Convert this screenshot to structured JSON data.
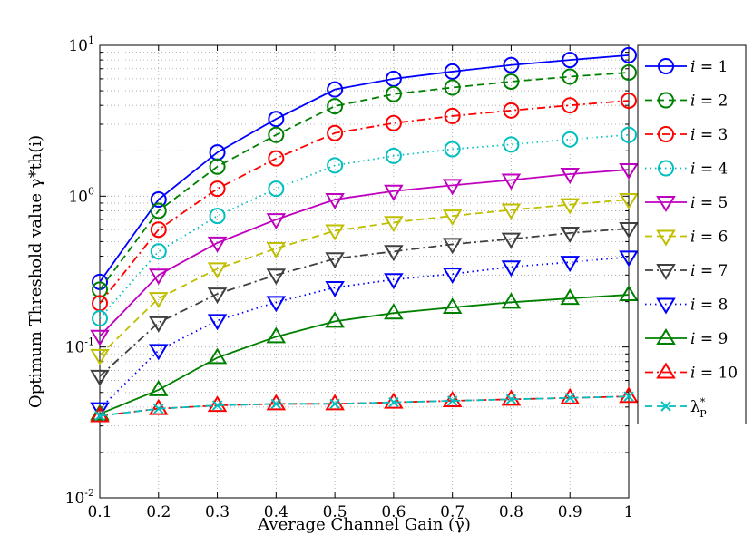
{
  "chart_data": {
    "type": "line",
    "title": "",
    "xlabel": "Average Channel Gain (γ̄)",
    "ylabel": "Optimum Threshold value γ*th(i)",
    "xlim": [
      0.1,
      1
    ],
    "ylim": [
      0.01,
      10
    ],
    "yscale": "log",
    "grid": true,
    "legend_position": "right-outside",
    "x": [
      0.1,
      0.2,
      0.3,
      0.4,
      0.5,
      0.6,
      0.7,
      0.8,
      0.9,
      1.0
    ],
    "xticks": [
      "0.1",
      "0.2",
      "0.3",
      "0.4",
      "0.5",
      "0.6",
      "0.7",
      "0.8",
      "0.9",
      "1"
    ],
    "yticks": [
      {
        "base": "10",
        "exp": "-2"
      },
      {
        "base": "10",
        "exp": "-1"
      },
      {
        "base": "10",
        "exp": "0"
      },
      {
        "base": "10",
        "exp": "1"
      }
    ],
    "series": [
      {
        "name": "i = 1",
        "color": "#0000ff",
        "dash": "solid",
        "marker": "circle",
        "values": [
          0.27,
          0.95,
          1.95,
          3.25,
          5.1,
          6.0,
          6.7,
          7.4,
          8.0,
          8.6
        ]
      },
      {
        "name": "i = 2",
        "color": "#008000",
        "dash": "dashed",
        "marker": "circle",
        "values": [
          0.24,
          0.8,
          1.57,
          2.55,
          3.95,
          4.75,
          5.25,
          5.75,
          6.2,
          6.6
        ]
      },
      {
        "name": "i = 3",
        "color": "#ff0000",
        "dash": "dashdot",
        "marker": "circle",
        "values": [
          0.195,
          0.6,
          1.12,
          1.78,
          2.62,
          3.05,
          3.4,
          3.7,
          4.0,
          4.3
        ]
      },
      {
        "name": "i = 4",
        "color": "#00bfbf",
        "dash": "dotted",
        "marker": "circle",
        "values": [
          0.155,
          0.43,
          0.74,
          1.12,
          1.6,
          1.85,
          2.05,
          2.2,
          2.38,
          2.55
        ]
      },
      {
        "name": "i = 5",
        "color": "#bf00bf",
        "dash": "solid",
        "marker": "triangle-down",
        "values": [
          0.118,
          0.3,
          0.49,
          0.7,
          0.95,
          1.08,
          1.18,
          1.28,
          1.4,
          1.5
        ]
      },
      {
        "name": "i = 6",
        "color": "#bfbf00",
        "dash": "dashed",
        "marker": "triangle-down",
        "values": [
          0.088,
          0.21,
          0.33,
          0.45,
          0.59,
          0.67,
          0.74,
          0.81,
          0.88,
          0.95
        ]
      },
      {
        "name": "i = 7",
        "color": "#404040",
        "dash": "dashdot",
        "marker": "triangle-down",
        "values": [
          0.064,
          0.145,
          0.225,
          0.3,
          0.385,
          0.43,
          0.48,
          0.52,
          0.57,
          0.61
        ]
      },
      {
        "name": "i = 8",
        "color": "#0000ff",
        "dash": "dotted",
        "marker": "triangle-down",
        "values": [
          0.039,
          0.095,
          0.15,
          0.198,
          0.248,
          0.28,
          0.305,
          0.34,
          0.365,
          0.395
        ]
      },
      {
        "name": "i = 9",
        "color": "#008000",
        "dash": "solid",
        "marker": "triangle-up",
        "values": [
          0.036,
          0.052,
          0.085,
          0.117,
          0.148,
          0.168,
          0.183,
          0.198,
          0.21,
          0.222
        ]
      },
      {
        "name": "i = 10",
        "color": "#ff0000",
        "dash": "dashdot",
        "marker": "triangle-up",
        "values": [
          0.035,
          0.039,
          0.041,
          0.042,
          0.042,
          0.043,
          0.044,
          0.045,
          0.046,
          0.047
        ]
      },
      {
        "name": "λ*P",
        "color": "#00bfbf",
        "dash": "dashed",
        "marker": "x",
        "values": [
          0.035,
          0.039,
          0.041,
          0.042,
          0.042,
          0.043,
          0.044,
          0.045,
          0.046,
          0.047
        ]
      }
    ]
  }
}
